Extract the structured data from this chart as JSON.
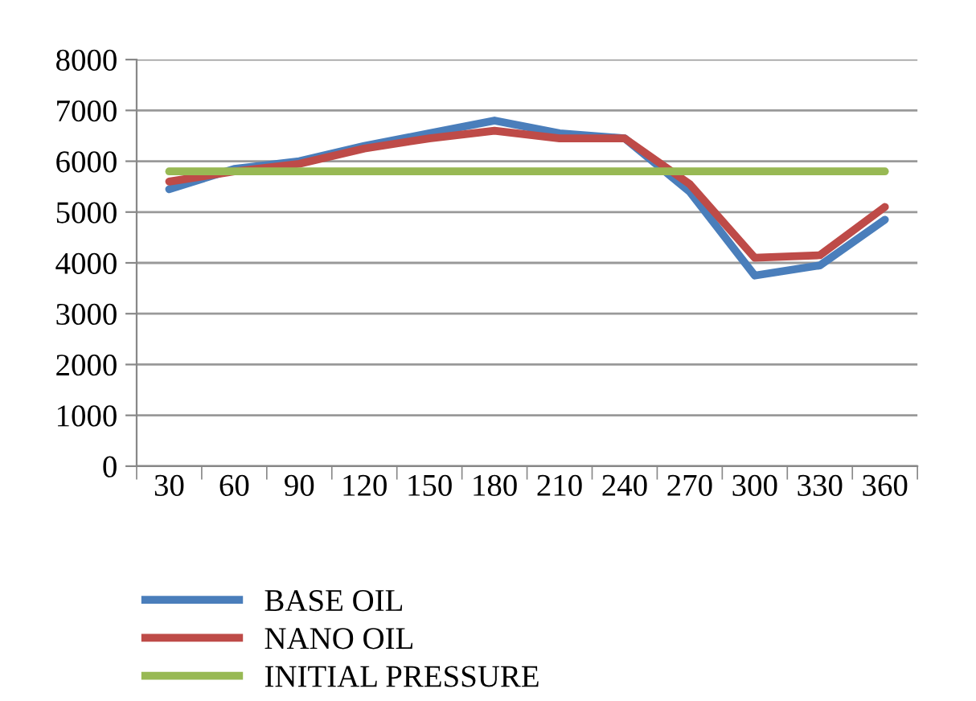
{
  "chart_data": {
    "type": "line",
    "categories": [
      "30",
      "60",
      "90",
      "120",
      "150",
      "180",
      "210",
      "240",
      "270",
      "300",
      "330",
      "360"
    ],
    "series": [
      {
        "name": "BASE OIL",
        "color": "#4a7ebb",
        "values": [
          5450,
          5850,
          6000,
          6300,
          6550,
          6800,
          6550,
          6450,
          5400,
          3750,
          3950,
          4850
        ]
      },
      {
        "name": "NANO OIL",
        "color": "#be4b48",
        "values": [
          5600,
          5800,
          5950,
          6250,
          6450,
          6600,
          6450,
          6450,
          5550,
          4100,
          4150,
          5100
        ]
      },
      {
        "name": "INITIAL PRESSURE",
        "color": "#98b954",
        "values": [
          5800,
          5800,
          5800,
          5800,
          5800,
          5800,
          5800,
          5800,
          5800,
          5800,
          5800,
          5800
        ]
      }
    ],
    "ylim": [
      0,
      8000
    ],
    "yticks": [
      0,
      1000,
      2000,
      3000,
      4000,
      5000,
      6000,
      7000,
      8000
    ],
    "grid": "y",
    "legend": "bottom",
    "marker": "none",
    "line_style": "solid"
  }
}
